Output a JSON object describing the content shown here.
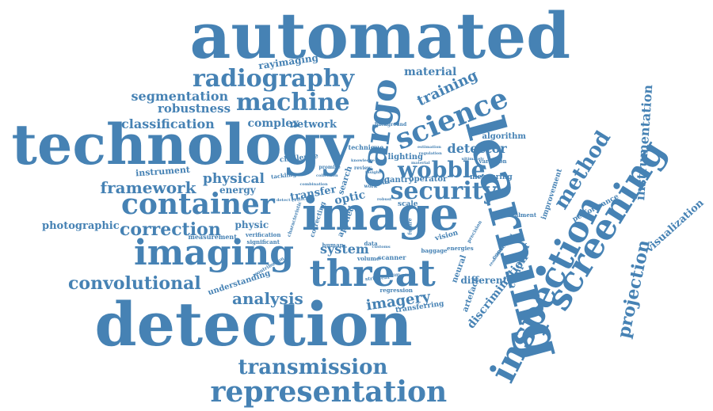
{
  "color": "#4682b4",
  "words": [
    {
      "text": "automated"
    },
    {
      "text": "technology"
    },
    {
      "text": "detection"
    },
    {
      "text": "learning"
    },
    {
      "text": "image"
    },
    {
      "text": "imaging"
    },
    {
      "text": "threat"
    },
    {
      "text": "inspection"
    },
    {
      "text": "screening"
    },
    {
      "text": "science"
    },
    {
      "text": "container"
    },
    {
      "text": "machine"
    },
    {
      "text": "radiography"
    },
    {
      "text": "security"
    },
    {
      "text": "cargo"
    },
    {
      "text": "representation"
    },
    {
      "text": "transmission"
    },
    {
      "text": "wobble"
    },
    {
      "text": "method"
    },
    {
      "text": "correction"
    },
    {
      "text": "framework"
    },
    {
      "text": "convolutional"
    },
    {
      "text": "analysis"
    },
    {
      "text": "classification"
    },
    {
      "text": "segmentation"
    },
    {
      "text": "robustness"
    },
    {
      "text": "projection"
    },
    {
      "text": "instrumentation"
    },
    {
      "text": "physical"
    },
    {
      "text": "imagery"
    },
    {
      "text": "system"
    },
    {
      "text": "training"
    },
    {
      "text": "detector"
    },
    {
      "text": "material"
    },
    {
      "text": "rayimaging"
    },
    {
      "text": "network"
    },
    {
      "text": "complex"
    },
    {
      "text": "photographic"
    },
    {
      "text": "instrument"
    },
    {
      "text": "energy"
    },
    {
      "text": "transfer"
    },
    {
      "text": "physic"
    },
    {
      "text": "discrimination"
    },
    {
      "text": "visualization"
    },
    {
      "text": "computer"
    },
    {
      "text": "different"
    },
    {
      "text": "algorithm"
    },
    {
      "text": "neural"
    },
    {
      "text": "artefact"
    },
    {
      "text": "lighting"
    },
    {
      "text": "gantry"
    },
    {
      "text": "operator"
    },
    {
      "text": "measuring"
    },
    {
      "text": "scanner"
    },
    {
      "text": "volume"
    },
    {
      "text": "baggage"
    },
    {
      "text": "human"
    },
    {
      "text": "understanding"
    },
    {
      "text": "transferring"
    },
    {
      "text": "regression"
    },
    {
      "text": "measurement"
    },
    {
      "text": "verification"
    },
    {
      "text": "significant"
    },
    {
      "text": "improvement"
    },
    {
      "text": "performance"
    },
    {
      "text": "concealment"
    },
    {
      "text": "challenge"
    },
    {
      "text": "technique"
    },
    {
      "text": "background"
    },
    {
      "text": "variation"
    },
    {
      "text": "optic"
    },
    {
      "text": "dual"
    },
    {
      "text": "scale"
    },
    {
      "text": "vision"
    },
    {
      "text": "search"
    },
    {
      "text": "applied"
    },
    {
      "text": "correcting"
    },
    {
      "text": "tackling"
    },
    {
      "text": "concealed"
    },
    {
      "text": "data"
    },
    {
      "text": "review"
    },
    {
      "text": "energies"
    },
    {
      "text": "critical"
    },
    {
      "text": "precision"
    },
    {
      "text": "work"
    },
    {
      "text": "promise"
    },
    {
      "text": "future"
    },
    {
      "text": "stringent"
    },
    {
      "text": "detect"
    },
    {
      "text": "resolution"
    },
    {
      "text": "difficulty"
    },
    {
      "text": "contribution"
    },
    {
      "text": "characteristic"
    },
    {
      "text": "customs"
    },
    {
      "text": "insight"
    },
    {
      "text": "estimation"
    },
    {
      "text": "regulation"
    },
    {
      "text": "knowledge"
    },
    {
      "text": "collection"
    },
    {
      "text": "ultimately"
    },
    {
      "text": "combination"
    },
    {
      "text": "robust"
    },
    {
      "text": "material"
    }
  ]
}
